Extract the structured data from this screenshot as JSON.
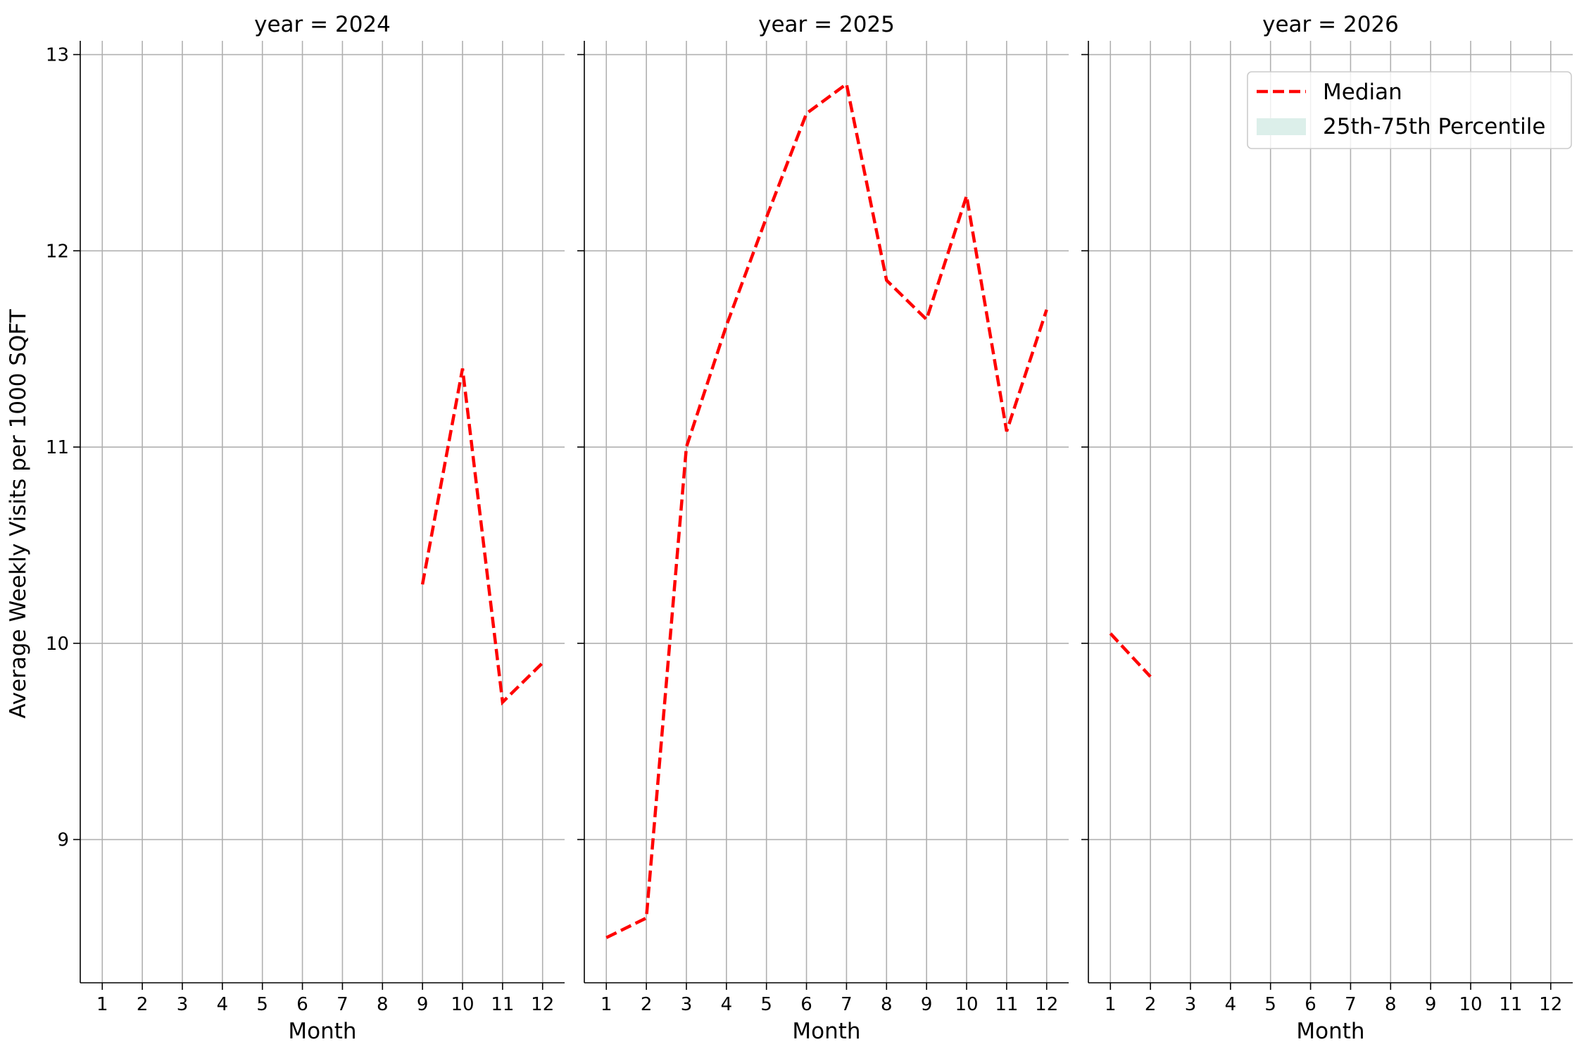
{
  "chart_data": {
    "type": "line",
    "facet_label": "year",
    "xlabel": "Month",
    "ylabel": "Average Weekly Visits per 1000 SQFT",
    "x_ticks": [
      1,
      2,
      3,
      4,
      5,
      6,
      7,
      8,
      9,
      10,
      11,
      12
    ],
    "y_ticks": [
      9,
      10,
      11,
      12,
      13
    ],
    "ylim": [
      8.27,
      13.07
    ],
    "xlim": [
      0.45,
      12.55
    ],
    "grid": true,
    "legend": {
      "placement": "top-right",
      "entries": [
        {
          "label": "Median",
          "style": "dashed-line",
          "color": "#ff0000"
        },
        {
          "label": "25th-75th Percentile",
          "style": "band",
          "color": "#dcefea"
        }
      ]
    },
    "panels": [
      {
        "title": "year = 2024",
        "series": [
          {
            "x": [
              9,
              10,
              11,
              12
            ],
            "y": [
              10.3,
              11.4,
              9.7,
              9.9
            ]
          }
        ]
      },
      {
        "title": "year = 2025",
        "series": [
          {
            "x": [
              1,
              2,
              3,
              4,
              5,
              6,
              7,
              8,
              9,
              10,
              11,
              12
            ],
            "y": [
              8.5,
              8.6,
              11.0,
              11.62,
              12.17,
              12.7,
              12.85,
              11.85,
              11.65,
              12.28,
              11.08,
              11.7
            ]
          }
        ]
      },
      {
        "title": "year = 2026",
        "series": [
          {
            "x": [
              1,
              2
            ],
            "y": [
              10.05,
              9.83
            ]
          }
        ]
      }
    ]
  }
}
